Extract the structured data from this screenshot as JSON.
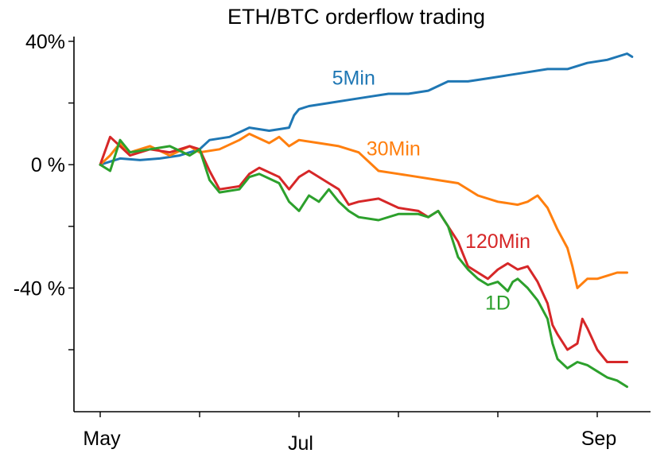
{
  "chart_data": {
    "type": "line",
    "title": "ETH/BTC orderflow trading",
    "xlabel": "",
    "ylabel": "",
    "x_range": [
      0,
      5.32
    ],
    "ylim": [
      -80,
      42
    ],
    "yticks": [
      {
        "value": 40,
        "label": "40%"
      },
      {
        "value": 20,
        "label": ""
      },
      {
        "value": 0,
        "label": "0 %"
      },
      {
        "value": -20,
        "label": ""
      },
      {
        "value": -40,
        "label": "-40 %"
      },
      {
        "value": -60,
        "label": ""
      }
    ],
    "xticks": [
      {
        "value": 0,
        "label": "May"
      },
      {
        "value": 1,
        "label": ""
      },
      {
        "value": 2,
        "label": "Jul"
      },
      {
        "value": 3,
        "label": ""
      },
      {
        "value": 4,
        "label": ""
      },
      {
        "value": 5,
        "label": "Sep"
      }
    ],
    "grid": false,
    "series": [
      {
        "name": "5Min",
        "color": "#1f77b4",
        "points": [
          [
            0,
            0
          ],
          [
            0.1,
            1
          ],
          [
            0.2,
            2
          ],
          [
            0.4,
            1.5
          ],
          [
            0.6,
            2
          ],
          [
            0.8,
            3
          ],
          [
            1.0,
            5
          ],
          [
            1.1,
            8
          ],
          [
            1.3,
            9
          ],
          [
            1.5,
            12
          ],
          [
            1.7,
            11
          ],
          [
            1.9,
            12
          ],
          [
            1.95,
            16
          ],
          [
            2.0,
            18
          ],
          [
            2.1,
            19
          ],
          [
            2.3,
            20
          ],
          [
            2.5,
            21
          ],
          [
            2.7,
            22
          ],
          [
            2.9,
            23
          ],
          [
            3.1,
            23
          ],
          [
            3.3,
            24
          ],
          [
            3.5,
            27
          ],
          [
            3.7,
            27
          ],
          [
            3.9,
            28
          ],
          [
            4.1,
            29
          ],
          [
            4.3,
            30
          ],
          [
            4.5,
            31
          ],
          [
            4.7,
            31
          ],
          [
            4.9,
            33
          ],
          [
            5.1,
            34
          ],
          [
            5.3,
            36
          ],
          [
            5.35,
            35
          ]
        ]
      },
      {
        "name": "30Min",
        "color": "#ff7f0e",
        "points": [
          [
            0,
            0
          ],
          [
            0.1,
            3
          ],
          [
            0.2,
            7
          ],
          [
            0.3,
            4
          ],
          [
            0.5,
            6
          ],
          [
            0.7,
            3
          ],
          [
            0.9,
            6
          ],
          [
            1.0,
            4
          ],
          [
            1.2,
            5
          ],
          [
            1.4,
            8
          ],
          [
            1.5,
            10
          ],
          [
            1.7,
            7
          ],
          [
            1.8,
            9
          ],
          [
            1.9,
            6
          ],
          [
            2.0,
            8
          ],
          [
            2.2,
            7
          ],
          [
            2.4,
            6
          ],
          [
            2.6,
            4
          ],
          [
            2.8,
            -2
          ],
          [
            3.0,
            -3
          ],
          [
            3.2,
            -4
          ],
          [
            3.4,
            -5
          ],
          [
            3.6,
            -6
          ],
          [
            3.8,
            -10
          ],
          [
            4.0,
            -12
          ],
          [
            4.2,
            -13
          ],
          [
            4.3,
            -12
          ],
          [
            4.4,
            -10
          ],
          [
            4.5,
            -14
          ],
          [
            4.6,
            -21
          ],
          [
            4.7,
            -27
          ],
          [
            4.75,
            -33
          ],
          [
            4.8,
            -40
          ],
          [
            4.9,
            -37
          ],
          [
            5.0,
            -37
          ],
          [
            5.1,
            -36
          ],
          [
            5.2,
            -35
          ],
          [
            5.3,
            -35
          ]
        ]
      },
      {
        "name": "120Min",
        "color": "#d62728",
        "points": [
          [
            0,
            0
          ],
          [
            0.1,
            9
          ],
          [
            0.2,
            6
          ],
          [
            0.3,
            3
          ],
          [
            0.5,
            5
          ],
          [
            0.7,
            4
          ],
          [
            0.9,
            6
          ],
          [
            1.0,
            5
          ],
          [
            1.1,
            -2
          ],
          [
            1.2,
            -8
          ],
          [
            1.4,
            -7
          ],
          [
            1.5,
            -3
          ],
          [
            1.6,
            -1
          ],
          [
            1.8,
            -4
          ],
          [
            1.9,
            -8
          ],
          [
            2.0,
            -4
          ],
          [
            2.1,
            -2
          ],
          [
            2.3,
            -6
          ],
          [
            2.4,
            -8
          ],
          [
            2.5,
            -13
          ],
          [
            2.6,
            -12
          ],
          [
            2.8,
            -11
          ],
          [
            3.0,
            -14
          ],
          [
            3.2,
            -15
          ],
          [
            3.3,
            -17
          ],
          [
            3.4,
            -15
          ],
          [
            3.5,
            -20
          ],
          [
            3.6,
            -25
          ],
          [
            3.7,
            -33
          ],
          [
            3.8,
            -35
          ],
          [
            3.9,
            -37
          ],
          [
            4.0,
            -34
          ],
          [
            4.1,
            -32
          ],
          [
            4.2,
            -34
          ],
          [
            4.3,
            -33
          ],
          [
            4.4,
            -38
          ],
          [
            4.5,
            -45
          ],
          [
            4.55,
            -52
          ],
          [
            4.6,
            -55
          ],
          [
            4.7,
            -60
          ],
          [
            4.8,
            -58
          ],
          [
            4.85,
            -50
          ],
          [
            4.9,
            -53
          ],
          [
            5.0,
            -60
          ],
          [
            5.1,
            -64
          ],
          [
            5.2,
            -64
          ],
          [
            5.3,
            -64
          ]
        ]
      },
      {
        "name": "1D",
        "color": "#2ca02c",
        "points": [
          [
            0,
            0
          ],
          [
            0.1,
            -2
          ],
          [
            0.2,
            8
          ],
          [
            0.3,
            4
          ],
          [
            0.5,
            5
          ],
          [
            0.7,
            6
          ],
          [
            0.9,
            3
          ],
          [
            1.0,
            5
          ],
          [
            1.1,
            -5
          ],
          [
            1.2,
            -9
          ],
          [
            1.4,
            -8
          ],
          [
            1.5,
            -4
          ],
          [
            1.6,
            -3
          ],
          [
            1.8,
            -6
          ],
          [
            1.9,
            -12
          ],
          [
            2.0,
            -15
          ],
          [
            2.1,
            -10
          ],
          [
            2.2,
            -12
          ],
          [
            2.3,
            -8
          ],
          [
            2.4,
            -12
          ],
          [
            2.5,
            -15
          ],
          [
            2.6,
            -17
          ],
          [
            2.8,
            -18
          ],
          [
            3.0,
            -16
          ],
          [
            3.2,
            -16
          ],
          [
            3.3,
            -17
          ],
          [
            3.4,
            -15
          ],
          [
            3.5,
            -20
          ],
          [
            3.6,
            -30
          ],
          [
            3.7,
            -34
          ],
          [
            3.8,
            -37
          ],
          [
            3.9,
            -39
          ],
          [
            4.0,
            -38
          ],
          [
            4.1,
            -41
          ],
          [
            4.15,
            -38
          ],
          [
            4.2,
            -37
          ],
          [
            4.3,
            -40
          ],
          [
            4.4,
            -44
          ],
          [
            4.5,
            -50
          ],
          [
            4.55,
            -58
          ],
          [
            4.6,
            -63
          ],
          [
            4.7,
            -66
          ],
          [
            4.8,
            -64
          ],
          [
            4.9,
            -65
          ],
          [
            5.0,
            -67
          ],
          [
            5.1,
            -69
          ],
          [
            5.2,
            -70
          ],
          [
            5.3,
            -72
          ]
        ]
      }
    ],
    "annotations": [
      {
        "series": "5Min",
        "text": "5Min",
        "at": [
          2.55,
          26
        ]
      },
      {
        "series": "30Min",
        "text": "30Min",
        "at": [
          2.95,
          3
        ]
      },
      {
        "series": "120Min",
        "text": "120Min",
        "at": [
          4.0,
          -27
        ]
      },
      {
        "series": "1D",
        "text": "1D",
        "at": [
          4.0,
          -47
        ]
      }
    ]
  }
}
